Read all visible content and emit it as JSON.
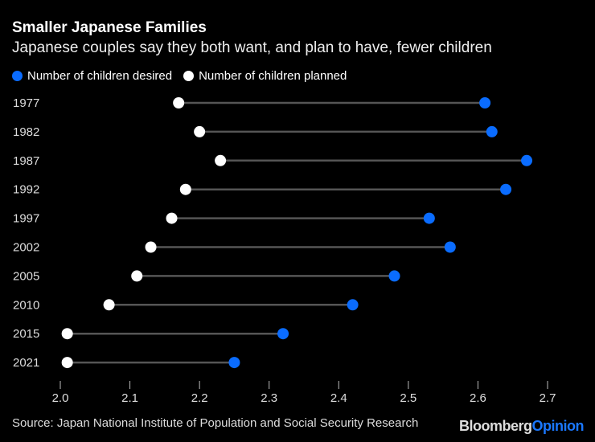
{
  "title": "Smaller Japanese Families",
  "subtitle": "Japanese couples say they both want, and plan to have, fewer children",
  "source": "Source: Japan National Institute of Population and Social Security Research",
  "logo": {
    "part1": "Bloomberg",
    "part2": "Opinion"
  },
  "colors": {
    "desired": "#0a6cff",
    "planned": "#ffffff",
    "connector": "#555555",
    "logo_accent": "#1a78ff"
  },
  "chart_data": {
    "type": "dumbbell",
    "categories": [
      "1977",
      "1982",
      "1987",
      "1992",
      "1997",
      "2002",
      "2005",
      "2010",
      "2015",
      "2021"
    ],
    "series": [
      {
        "name": "Number of children desired",
        "values": [
          2.61,
          2.62,
          2.67,
          2.64,
          2.53,
          2.56,
          2.48,
          2.42,
          2.32,
          2.25
        ]
      },
      {
        "name": "Number of children planned",
        "values": [
          2.17,
          2.2,
          2.23,
          2.18,
          2.16,
          2.13,
          2.11,
          2.07,
          2.01,
          2.01
        ]
      }
    ],
    "xlim": [
      2.0,
      2.7
    ],
    "xticks": [
      "2.0",
      "2.1",
      "2.2",
      "2.3",
      "2.4",
      "2.5",
      "2.6",
      "2.7"
    ],
    "grid": false,
    "legend": "top-left"
  }
}
